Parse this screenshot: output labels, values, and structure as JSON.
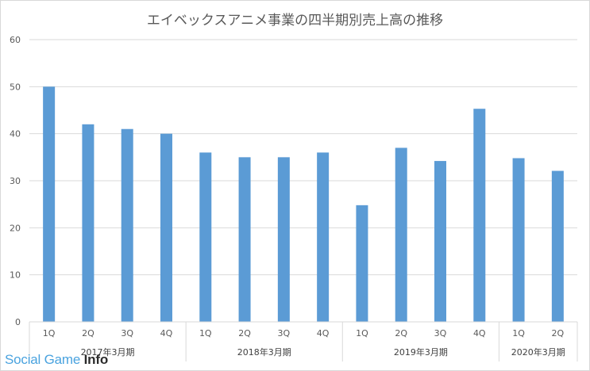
{
  "chart_data": {
    "type": "bar",
    "title": "エイベックスアニメ事業の四半期別売上高の推移",
    "categories": [
      "1Q",
      "2Q",
      "3Q",
      "4Q",
      "1Q",
      "2Q",
      "3Q",
      "4Q",
      "1Q",
      "2Q",
      "3Q",
      "4Q",
      "1Q",
      "2Q"
    ],
    "groups": [
      {
        "label": "2017年3月期",
        "count": 4
      },
      {
        "label": "2018年3月期",
        "count": 4
      },
      {
        "label": "2019年3月期",
        "count": 4
      },
      {
        "label": "2020年3月期",
        "count": 2
      }
    ],
    "series": [
      {
        "values": [
          50,
          42,
          41,
          40,
          36,
          35,
          35,
          36,
          24.8,
          37,
          34.2,
          45.3,
          34.8,
          32.1
        ]
      }
    ],
    "ylim": [
      0,
      60
    ],
    "yticks": [
      0,
      10,
      20,
      30,
      40,
      50,
      60
    ],
    "grid": true,
    "bar_color": "#5b9bd5"
  },
  "watermark": {
    "part1": "Social Game ",
    "part2": "Info"
  }
}
